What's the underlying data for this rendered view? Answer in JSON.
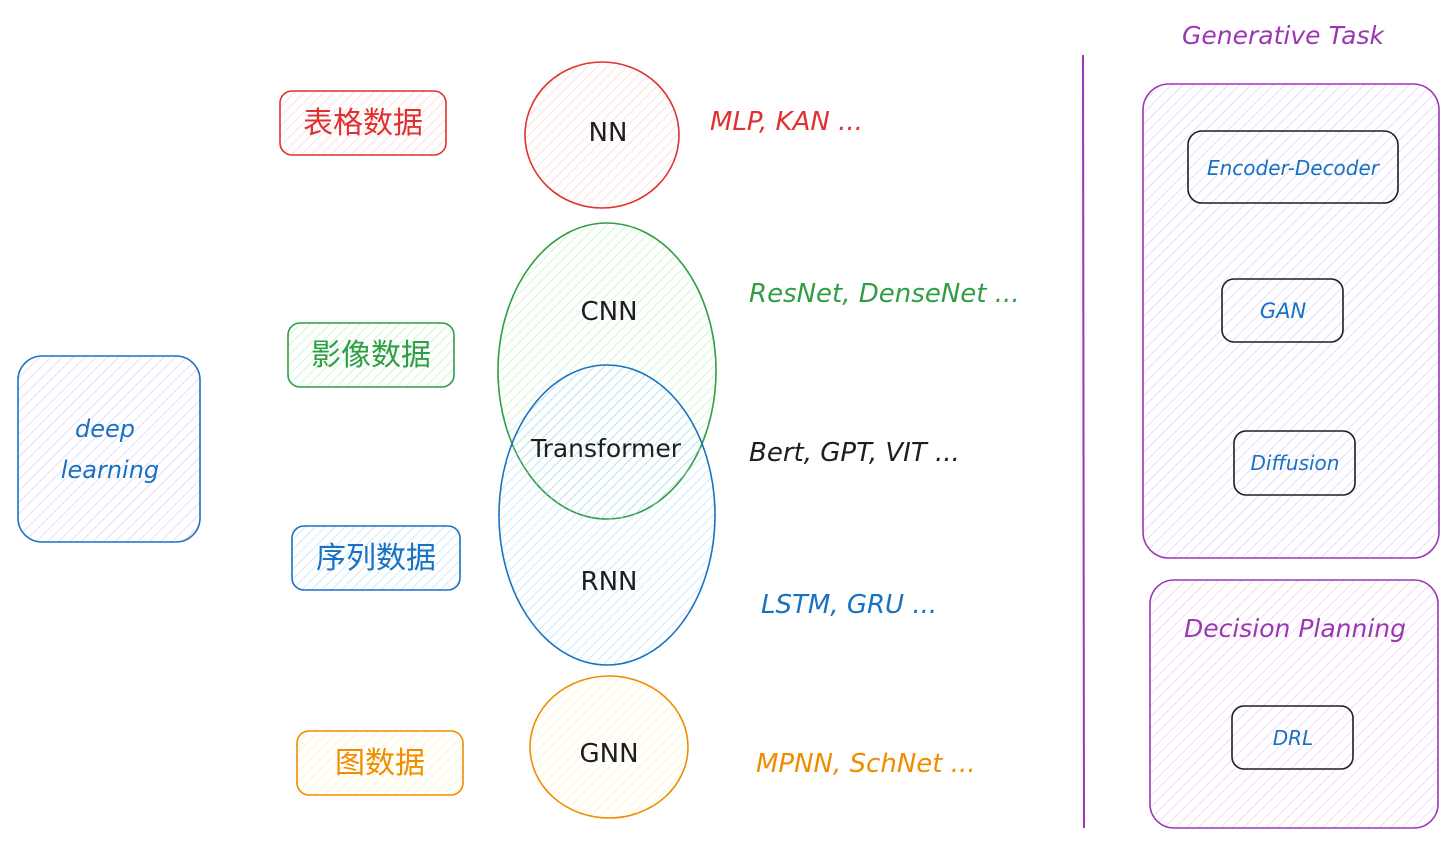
{
  "colors": {
    "red": "#e03131",
    "red_fill": "#ffc9c9",
    "green": "#2f9e44",
    "green_fill": "#b2f2bb",
    "blue": "#1971c2",
    "blue_fill": "#a5d8ff",
    "orange": "#f08c00",
    "orange_fill": "#ffec99",
    "purple": "#9c36b5",
    "purple_fill": "#d0bfff",
    "pink_fill": "#eebefa",
    "dark": "#1e1e1e",
    "panel_fill": "#e5dbff"
  },
  "left": {
    "root_line1": "deep",
    "root_line2": "learning"
  },
  "data_types": {
    "tabular": "表格数据",
    "image": "影像数据",
    "sequence": "序列数据",
    "graph": "图数据"
  },
  "models": {
    "nn": "NN",
    "cnn": "CNN",
    "transformer": "Transformer",
    "rnn": "RNN",
    "gnn": "GNN"
  },
  "examples": {
    "nn": "MLP, KAN ...",
    "cnn": "ResNet,  DenseNet ...",
    "transformer": "Bert,  GPT,  VIT ...",
    "rnn": "LSTM, GRU ...",
    "gnn": "MPNN, SchNet ..."
  },
  "right": {
    "generative_title": "Generative Task",
    "generative_items": [
      "Encoder-Decoder",
      "GAN",
      "Diffusion"
    ],
    "decision_title": "Decision Planning",
    "decision_items": [
      "DRL"
    ]
  }
}
